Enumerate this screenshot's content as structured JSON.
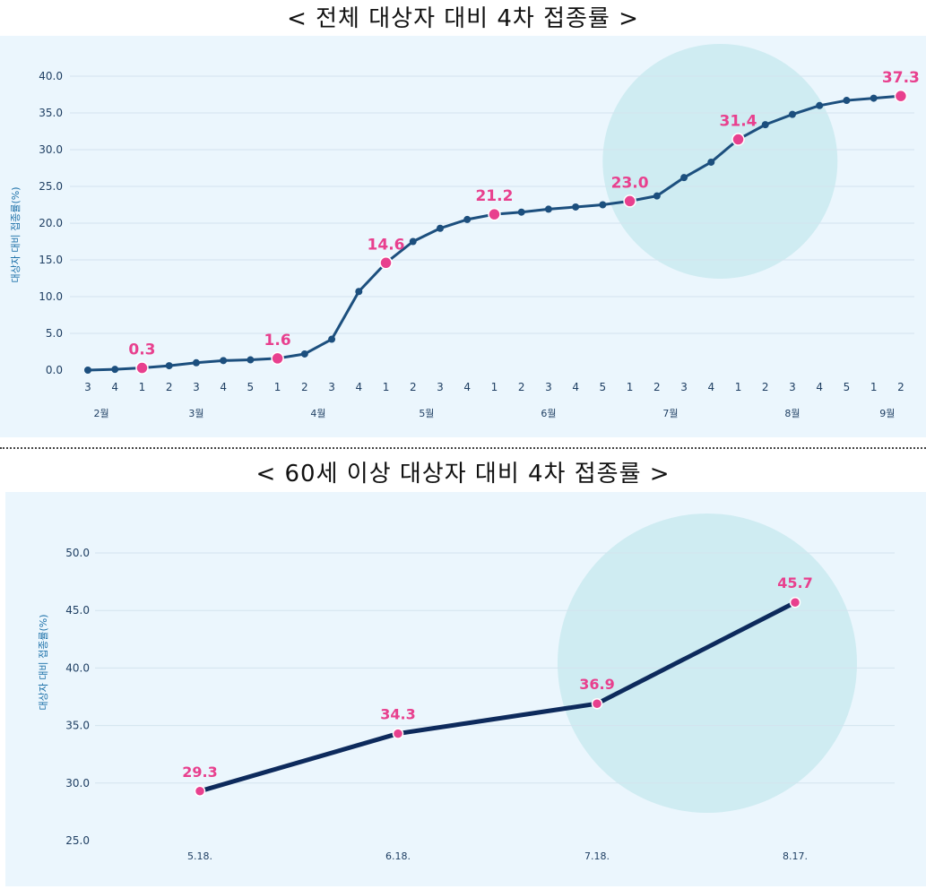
{
  "chart_data": [
    {
      "type": "line",
      "title": "< 전체 대상자 대비 4차 접종률 >",
      "ylabel": "대상자 대비 접종률(%)",
      "ylim": [
        0,
        40
      ],
      "yticks": [
        "0.0",
        "5.0",
        "10.0",
        "15.0",
        "20.0",
        "25.0",
        "30.0",
        "35.0",
        "40.0"
      ],
      "week_labels": [
        "3",
        "4",
        "1",
        "2",
        "3",
        "4",
        "5",
        "1",
        "2",
        "3",
        "4",
        "1",
        "2",
        "3",
        "4",
        "1",
        "2",
        "3",
        "4",
        "5",
        "1",
        "2",
        "3",
        "4",
        "1",
        "2",
        "3",
        "4",
        "5",
        "1",
        "2"
      ],
      "month_labels": [
        {
          "label": "2월",
          "center_week": 0.5
        },
        {
          "label": "3월",
          "center_week": 4
        },
        {
          "label": "4월",
          "center_week": 8.5
        },
        {
          "label": "5월",
          "center_week": 12.5
        },
        {
          "label": "6월",
          "center_week": 17
        },
        {
          "label": "7월",
          "center_week": 21.5
        },
        {
          "label": "8월",
          "center_week": 26
        },
        {
          "label": "9월",
          "center_week": 29.5
        }
      ],
      "values": [
        0.0,
        0.1,
        0.3,
        0.6,
        1.0,
        1.3,
        1.4,
        1.6,
        2.2,
        4.2,
        10.7,
        14.6,
        17.5,
        19.3,
        20.5,
        21.2,
        21.5,
        21.9,
        22.2,
        22.5,
        23.0,
        23.7,
        26.2,
        28.3,
        31.4,
        33.4,
        34.8,
        36.0,
        36.7,
        37.0,
        37.3
      ],
      "highlights": [
        {
          "index": 2,
          "label": "0.3"
        },
        {
          "index": 7,
          "label": "1.6"
        },
        {
          "index": 11,
          "label": "14.6"
        },
        {
          "index": 15,
          "label": "21.2"
        },
        {
          "index": 20,
          "label": "23.0"
        },
        {
          "index": 24,
          "label": "31.4"
        },
        {
          "index": 30,
          "label": "37.3"
        }
      ],
      "highlight_region": {
        "from_index": 19,
        "to_index": 27
      }
    },
    {
      "type": "line",
      "title": "< 60세 이상 대상자 대비 4차 접종률 >",
      "ylabel": "대상자 대비 접종률(%)",
      "ylim": [
        25,
        50
      ],
      "yticks": [
        "25.0",
        "30.0",
        "35.0",
        "40.0",
        "45.0",
        "50.0"
      ],
      "categories": [
        "5.18.",
        "6.18.",
        "7.18.",
        "8.17."
      ],
      "values": [
        29.3,
        34.3,
        36.9,
        45.7
      ],
      "labels": [
        "29.3",
        "34.3",
        "36.9",
        "45.7"
      ],
      "highlight_region": {
        "from_index": 2,
        "to_index": 3
      }
    }
  ],
  "colors": {
    "line1": "#1c4f7e",
    "line2": "#0d2a5c",
    "marker": "#1c4f7e",
    "highlight": "#e8408e",
    "circle": "#cfecf2",
    "grid": "#d3e3ee"
  }
}
